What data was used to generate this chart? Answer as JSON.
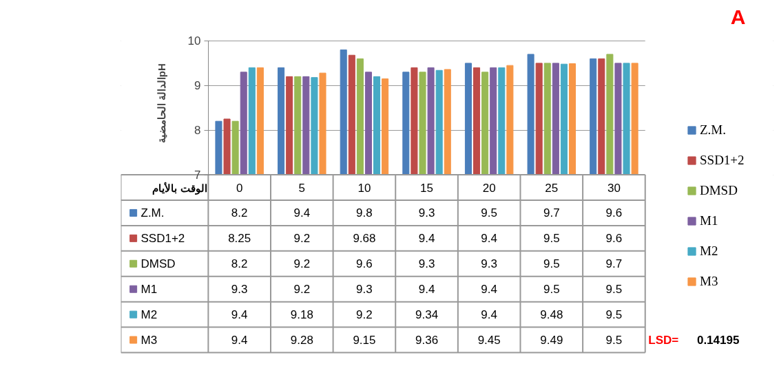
{
  "chart_data": {
    "type": "bar",
    "title": "A",
    "xlabel": "الوقت بالأيام",
    "ylabel": "الدالة الحامضيةpH",
    "categories": [
      "0",
      "5",
      "10",
      "15",
      "20",
      "25",
      "30"
    ],
    "series": [
      {
        "name": "Z.M.",
        "color": "#4a7ebb",
        "values": [
          8.2,
          9.4,
          9.8,
          9.3,
          9.5,
          9.7,
          9.6
        ]
      },
      {
        "name": "SSD1+2",
        "color": "#be4b48",
        "values": [
          8.25,
          9.2,
          9.68,
          9.4,
          9.4,
          9.5,
          9.6
        ]
      },
      {
        "name": "DMSD",
        "color": "#98b954",
        "values": [
          8.2,
          9.2,
          9.6,
          9.3,
          9.3,
          9.5,
          9.7
        ]
      },
      {
        "name": "M1",
        "color": "#7d60a0",
        "values": [
          9.3,
          9.2,
          9.3,
          9.4,
          9.4,
          9.5,
          9.5
        ]
      },
      {
        "name": "M2",
        "color": "#46aac5",
        "values": [
          9.4,
          9.18,
          9.2,
          9.34,
          9.4,
          9.48,
          9.5
        ]
      },
      {
        "name": "M3",
        "color": "#f79646",
        "values": [
          9.4,
          9.28,
          9.15,
          9.36,
          9.45,
          9.49,
          9.5
        ]
      }
    ],
    "ylim": [
      7,
      10
    ],
    "yticks": [
      7,
      8,
      9,
      10
    ],
    "grid": "y",
    "legend": "right",
    "data_labels": true,
    "annotations": [
      "LSD= 0.14195"
    ]
  }
}
